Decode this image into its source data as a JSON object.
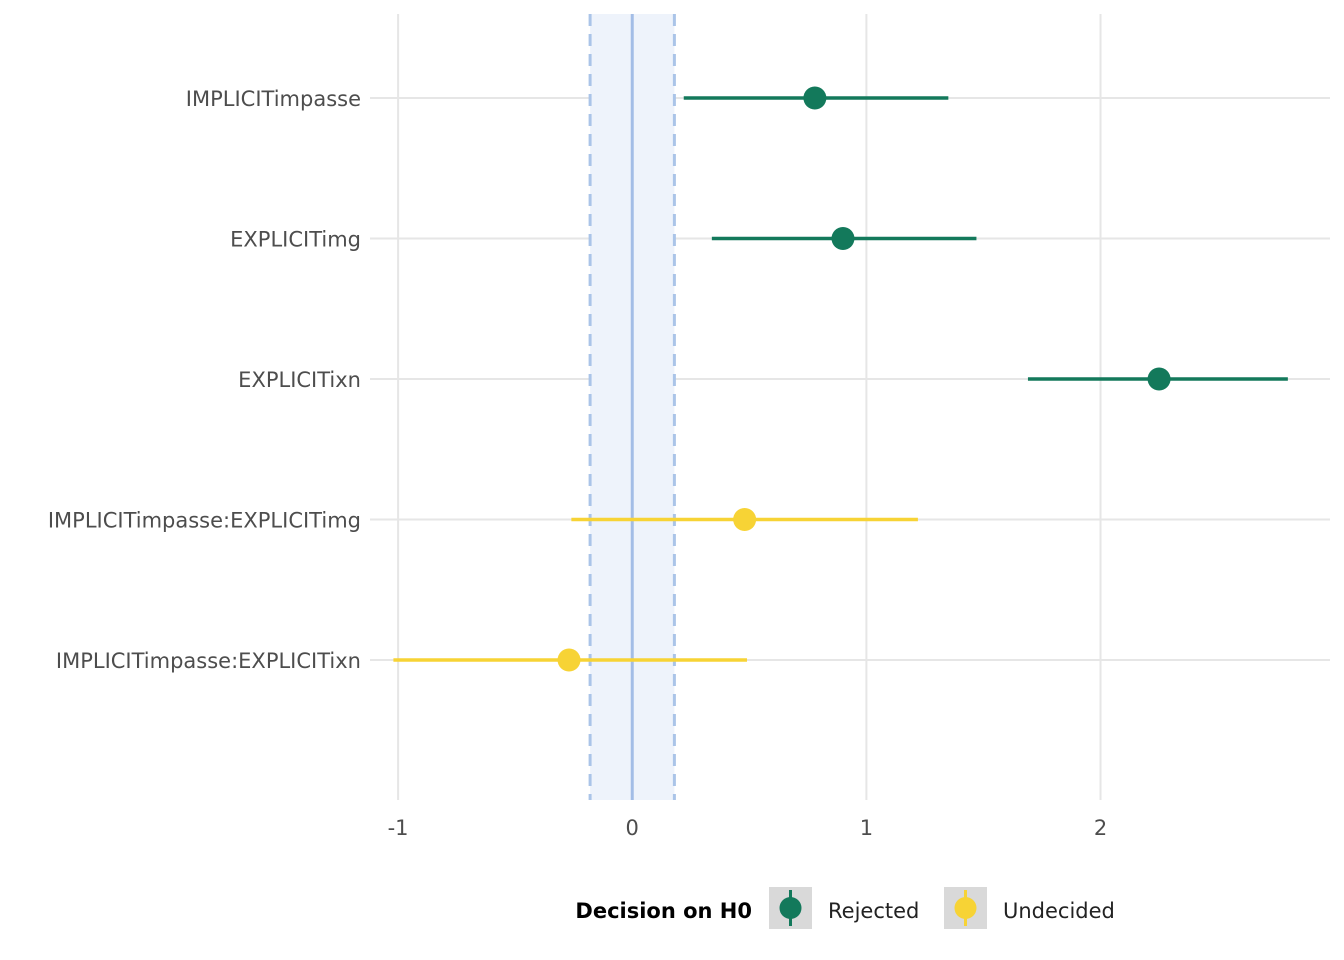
{
  "chart_data": {
    "type": "forest",
    "title": "",
    "xlabel": "",
    "ylabel": "",
    "xlim": [
      -1.12,
      2.98
    ],
    "x_ticks": [
      -1,
      0,
      1,
      2
    ],
    "x_tick_labels": [
      "-1",
      "0",
      "1",
      "2"
    ],
    "rope": {
      "low": -0.18,
      "high": 0.18,
      "center": 0
    },
    "grid": true,
    "legend_position": "bottom",
    "legend": {
      "title": "Decision on H0",
      "entries": [
        {
          "label": "Rejected",
          "color": "#13795b"
        },
        {
          "label": "Undecided",
          "color": "#f7d335"
        }
      ]
    },
    "colors": {
      "Rejected": "#13795b",
      "Undecided": "#f7d335",
      "rope_fill": "#eef3fb",
      "rope_line": "#aac4e8",
      "grid": "#e6e6e6"
    },
    "rows": [
      {
        "term": "IMPLICITimpasse",
        "estimate": 0.78,
        "low": 0.22,
        "high": 1.35,
        "decision": "Rejected"
      },
      {
        "term": "EXPLICITimg",
        "estimate": 0.9,
        "low": 0.34,
        "high": 1.47,
        "decision": "Rejected"
      },
      {
        "term": "EXPLICITixn",
        "estimate": 2.25,
        "low": 1.69,
        "high": 2.8,
        "decision": "Rejected"
      },
      {
        "term": "IMPLICITimpasse:EXPLICITimg",
        "estimate": 0.48,
        "low": -0.26,
        "high": 1.22,
        "decision": "Undecided"
      },
      {
        "term": "IMPLICITimpasse:EXPLICITixn",
        "estimate": -0.27,
        "low": -1.02,
        "high": 0.49,
        "decision": "Undecided"
      }
    ]
  }
}
